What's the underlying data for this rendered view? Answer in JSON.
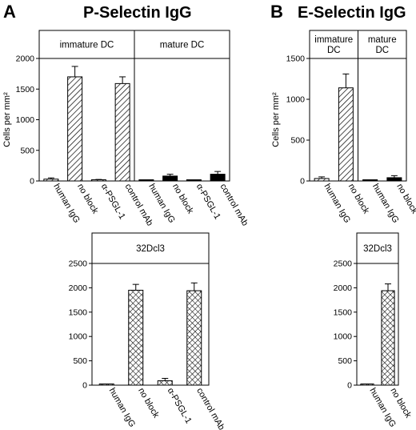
{
  "panels": [
    {
      "letter": "A",
      "title": "P-Selectin IgG"
    },
    {
      "letter": "B",
      "title": "E-Selectin IgG"
    }
  ],
  "chart_data": [
    {
      "type": "bar",
      "id": "A-top",
      "ylabel": "Cells per mm²",
      "ylim": [
        0,
        2000
      ],
      "yticks": [
        0,
        500,
        1000,
        1500,
        2000
      ],
      "groups": [
        {
          "label": "immature DC",
          "categories": [
            "human IgG",
            "no block",
            "α-PSGL-1",
            "control mAb"
          ],
          "values": [
            30,
            1700,
            15,
            1590
          ],
          "errors": [
            20,
            170,
            10,
            110
          ],
          "fill": "hatch"
        },
        {
          "label": "mature DC",
          "categories": [
            "human IgG",
            "no block",
            "α-PSGL-1",
            "control mAb"
          ],
          "values": [
            5,
            80,
            5,
            110
          ],
          "errors": [
            5,
            30,
            5,
            45
          ],
          "fill": "solid"
        }
      ]
    },
    {
      "type": "bar",
      "id": "B-top",
      "ylabel": "Cells per mm²",
      "ylim": [
        0,
        1500
      ],
      "yticks": [
        0,
        500,
        1000,
        1500
      ],
      "groups": [
        {
          "label": "immature\nDC",
          "categories": [
            "human IgG",
            "no block"
          ],
          "values": [
            30,
            1140
          ],
          "errors": [
            20,
            170
          ],
          "fill": "hatch"
        },
        {
          "label": "mature\nDC",
          "categories": [
            "human IgG",
            "no block"
          ],
          "values": [
            5,
            40
          ],
          "errors": [
            5,
            25
          ],
          "fill": "solid"
        }
      ]
    },
    {
      "type": "bar",
      "id": "A-bottom",
      "ylim": [
        0,
        2500
      ],
      "yticks": [
        0,
        500,
        1000,
        1500,
        2000,
        2500
      ],
      "groups": [
        {
          "label": "32Dcl3",
          "categories": [
            "human IgG",
            "no block",
            "α-PSGL-1",
            "control mAb"
          ],
          "values": [
            0,
            1950,
            90,
            1940
          ],
          "errors": [
            0,
            120,
            50,
            160
          ],
          "fill": "cross"
        }
      ]
    },
    {
      "type": "bar",
      "id": "B-bottom",
      "ylim": [
        0,
        2500
      ],
      "yticks": [
        0,
        500,
        1000,
        1500,
        2000,
        2500
      ],
      "groups": [
        {
          "label": "32Dcl3",
          "categories": [
            "human IgG",
            "no block"
          ],
          "values": [
            0,
            1940
          ],
          "errors": [
            0,
            140
          ],
          "fill": "cross"
        }
      ]
    }
  ]
}
